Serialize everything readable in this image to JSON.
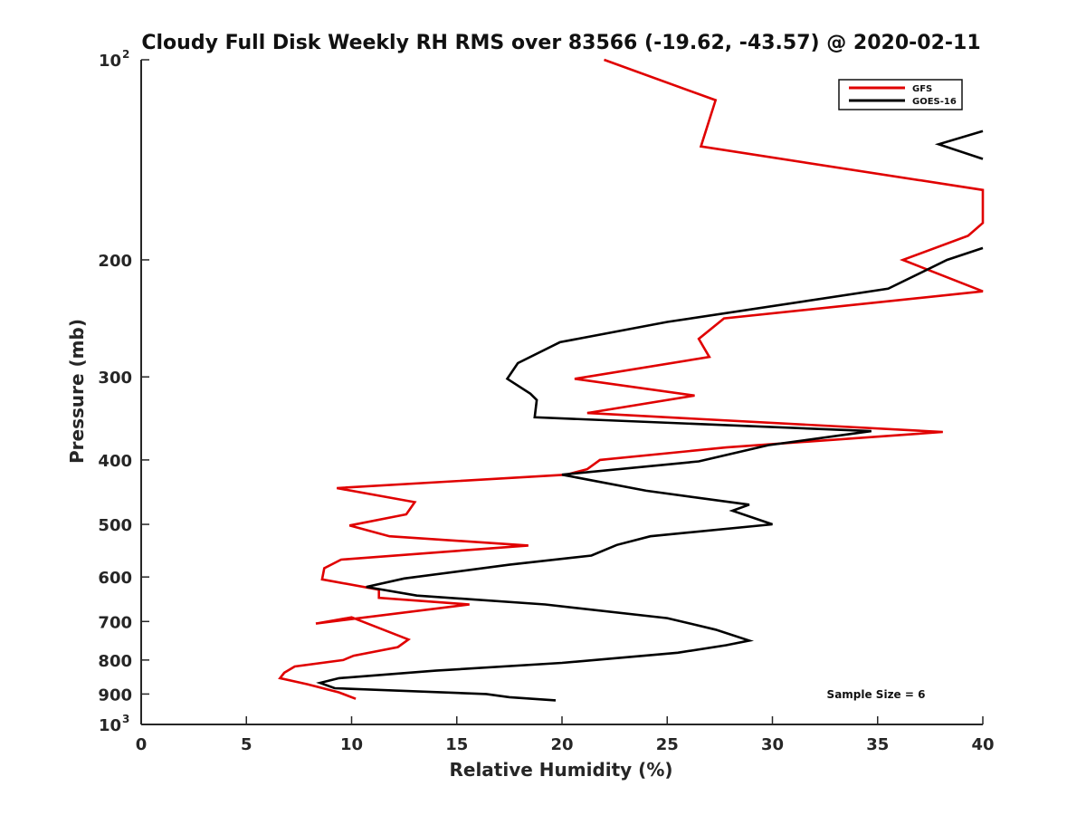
{
  "chart_data": {
    "type": "line",
    "title": "Cloudy Full Disk Weekly RH RMS over 83566 (-19.62, -43.57) @ 2020-02-11",
    "xlabel": "Relative Humidity (%)",
    "ylabel": "Pressure (mb)",
    "xlim": [
      0,
      40
    ],
    "ylim": [
      100,
      1000
    ],
    "yscale": "log",
    "y_direction": "reversed",
    "x_ticks": [
      "0",
      "5",
      "10",
      "15",
      "20",
      "25",
      "30",
      "35",
      "40"
    ],
    "y_ticks": [
      {
        "value": 100,
        "label": "10",
        "sup": "2"
      },
      {
        "value": 200,
        "label": "200"
      },
      {
        "value": 300,
        "label": "300"
      },
      {
        "value": 400,
        "label": "400"
      },
      {
        "value": 500,
        "label": "500"
      },
      {
        "value": 600,
        "label": "600"
      },
      {
        "value": 700,
        "label": "700"
      },
      {
        "value": 800,
        "label": "800"
      },
      {
        "value": 900,
        "label": "900"
      },
      {
        "value": 1000,
        "label": "10",
        "sup": "3"
      }
    ],
    "legend_position": "top-right",
    "annotation": "Sample Size = 6",
    "series": [
      {
        "name": "GFS",
        "color": "#e00000",
        "points": [
          [
            22,
            100
          ],
          [
            27.3,
            115
          ],
          [
            26.6,
            135
          ],
          [
            40,
            157
          ],
          [
            40,
            176
          ],
          [
            39.3,
            184
          ],
          [
            36.2,
            200
          ],
          [
            40,
            223
          ],
          [
            27.7,
            245
          ],
          [
            26.5,
            263
          ],
          [
            27.0,
            280
          ],
          [
            20.6,
            302
          ],
          [
            26.3,
            320
          ],
          [
            21.2,
            340
          ],
          [
            38.1,
            363
          ],
          [
            27.8,
            383
          ],
          [
            21.8,
            400
          ],
          [
            21.2,
            413
          ],
          [
            20.2,
            421
          ],
          [
            9.3,
            441
          ],
          [
            13.0,
            463
          ],
          [
            12.6,
            483
          ],
          [
            9.9,
            502
          ],
          [
            11.8,
            521
          ],
          [
            18.4,
            538
          ],
          [
            9.5,
            565
          ],
          [
            8.7,
            582
          ],
          [
            8.6,
            605
          ],
          [
            11.3,
            627
          ],
          [
            11.3,
            645
          ],
          [
            15.6,
            660
          ],
          [
            8.3,
            705
          ],
          [
            10.0,
            690
          ],
          [
            12.7,
            745
          ],
          [
            12.2,
            765
          ],
          [
            10.1,
            788
          ],
          [
            9.6,
            800
          ],
          [
            7.3,
            818
          ],
          [
            6.8,
            836
          ],
          [
            6.6,
            852
          ],
          [
            7.9,
            870
          ],
          [
            9.4,
            895
          ],
          [
            10.2,
            915
          ]
        ]
      },
      {
        "name": "GOES-16",
        "color": "#000000",
        "points": [
          [
            40,
            128
          ],
          [
            37.9,
            134
          ],
          [
            40,
            141
          ],
          [
            null,
            null
          ],
          [
            40,
            192
          ],
          [
            38.3,
            200
          ],
          [
            35.5,
            221
          ],
          [
            25.0,
            248
          ],
          [
            19.9,
            266
          ],
          [
            17.9,
            286
          ],
          [
            17.4,
            302
          ],
          [
            18.5,
            318
          ],
          [
            18.8,
            325
          ],
          [
            18.7,
            345
          ],
          [
            34.7,
            362
          ],
          [
            29.8,
            380
          ],
          [
            26.5,
            402
          ],
          [
            20.0,
            421
          ],
          [
            24.0,
            445
          ],
          [
            28.9,
            467
          ],
          [
            28.1,
            477
          ],
          [
            30.0,
            500
          ],
          [
            24.2,
            521
          ],
          [
            22.6,
            537
          ],
          [
            21.4,
            557
          ],
          [
            17.5,
            575
          ],
          [
            12.5,
            603
          ],
          [
            10.7,
            621
          ],
          [
            13.1,
            640
          ],
          [
            19.2,
            660
          ],
          [
            25.0,
            692
          ],
          [
            27.3,
            720
          ],
          [
            28.9,
            748
          ],
          [
            27.8,
            760
          ],
          [
            25.5,
            780
          ],
          [
            20.0,
            808
          ],
          [
            14.0,
            830
          ],
          [
            9.4,
            852
          ],
          [
            8.5,
            866
          ],
          [
            9.2,
            882
          ],
          [
            16.4,
            900
          ],
          [
            17.5,
            910
          ],
          [
            19.7,
            920
          ]
        ]
      }
    ]
  }
}
